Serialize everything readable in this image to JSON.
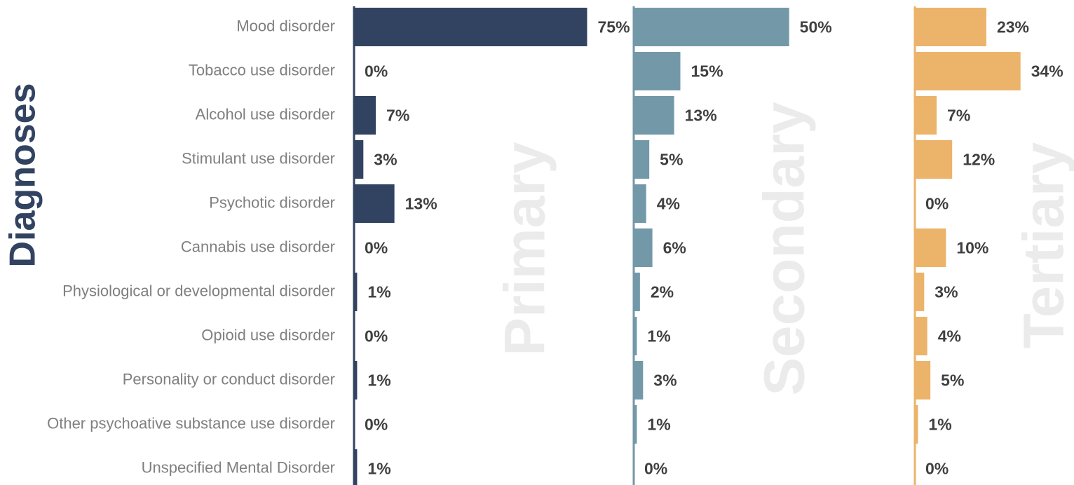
{
  "chart_data": {
    "type": "bar",
    "orientation": "horizontal",
    "y_label": "Diagnoses",
    "categories": [
      "Mood disorder",
      "Tobacco use disorder",
      "Alcohol use disorder",
      "Stimulant use disorder",
      "Psychotic disorder",
      "Cannabis use disorder",
      "Physiological or developmental disorder",
      "Opioid use disorder",
      "Personality or conduct disorder",
      "Other psychoative substance use disorder",
      "Unspecified Mental Disorder"
    ],
    "xlim": [
      0,
      90
    ],
    "series": [
      {
        "name": "Primary",
        "color": "#324361",
        "values": [
          75,
          0,
          7,
          3,
          13,
          0,
          1,
          0,
          1,
          0,
          1
        ],
        "value_labels": [
          "75%",
          "0%",
          "7%",
          "3%",
          "13%",
          "0%",
          "1%",
          "0%",
          "1%",
          "0%",
          "1%"
        ]
      },
      {
        "name": "Secondary",
        "color": "#7399a9",
        "values": [
          50,
          15,
          13,
          5,
          4,
          6,
          2,
          1,
          3,
          1,
          0
        ],
        "value_labels": [
          "50%",
          "15%",
          "13%",
          "5%",
          "4%",
          "6%",
          "2%",
          "1%",
          "3%",
          "1%",
          "0%"
        ]
      },
      {
        "name": "Tertiary",
        "color": "#ebb46a",
        "values": [
          23,
          34,
          7,
          12,
          0,
          10,
          3,
          4,
          5,
          1,
          0
        ],
        "value_labels": [
          "23%",
          "34%",
          "7%",
          "12%",
          "0%",
          "10%",
          "3%",
          "4%",
          "5%",
          "1%",
          "0%"
        ]
      }
    ]
  }
}
